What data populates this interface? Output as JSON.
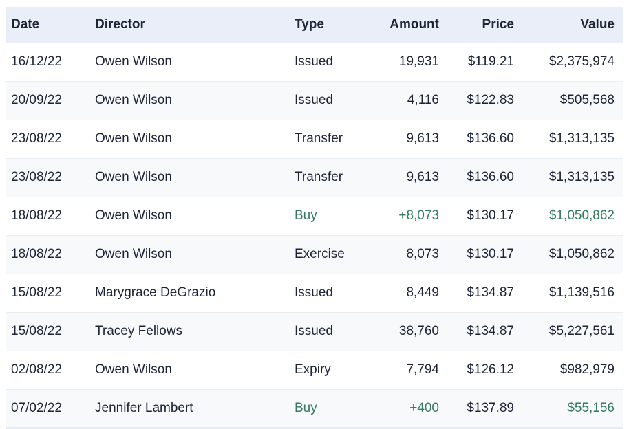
{
  "table": {
    "columns": [
      {
        "label": "Date"
      },
      {
        "label": "Director"
      },
      {
        "label": "Type"
      },
      {
        "label": "Amount"
      },
      {
        "label": "Price"
      },
      {
        "label": "Value"
      }
    ],
    "rows": [
      {
        "date": "16/12/22",
        "director": "Owen Wilson",
        "type": "Issued",
        "amount": "19,931",
        "price": "$119.21",
        "value": "$2,375,974",
        "highlight_green": false
      },
      {
        "date": "20/09/22",
        "director": "Owen Wilson",
        "type": "Issued",
        "amount": "4,116",
        "price": "$122.83",
        "value": "$505,568",
        "highlight_green": false
      },
      {
        "date": "23/08/22",
        "director": "Owen Wilson",
        "type": "Transfer",
        "amount": "9,613",
        "price": "$136.60",
        "value": "$1,313,135",
        "highlight_green": false
      },
      {
        "date": "23/08/22",
        "director": "Owen Wilson",
        "type": "Transfer",
        "amount": "9,613",
        "price": "$136.60",
        "value": "$1,313,135",
        "highlight_green": false
      },
      {
        "date": "18/08/22",
        "director": "Owen Wilson",
        "type": "Buy",
        "amount": "+8,073",
        "price": "$130.17",
        "value": "$1,050,862",
        "highlight_green": true
      },
      {
        "date": "18/08/22",
        "director": "Owen Wilson",
        "type": "Exercise",
        "amount": "8,073",
        "price": "$130.17",
        "value": "$1,050,862",
        "highlight_green": false
      },
      {
        "date": "15/08/22",
        "director": "Marygrace DeGrazio",
        "type": "Issued",
        "amount": "8,449",
        "price": "$134.87",
        "value": "$1,139,516",
        "highlight_green": false
      },
      {
        "date": "15/08/22",
        "director": "Tracey Fellows",
        "type": "Issued",
        "amount": "38,760",
        "price": "$134.87",
        "value": "$5,227,561",
        "highlight_green": false
      },
      {
        "date": "02/08/22",
        "director": "Owen Wilson",
        "type": "Expiry",
        "amount": "7,794",
        "price": "$126.12",
        "value": "$982,979",
        "highlight_green": false
      },
      {
        "date": "07/02/22",
        "director": "Jennifer Lambert",
        "type": "Buy",
        "amount": "+400",
        "price": "$137.89",
        "value": "$55,156",
        "highlight_green": true
      }
    ]
  },
  "colors": {
    "header_bg": "#e9eef8",
    "stripe_bg": "#f8f9fb",
    "text": "#1c2436",
    "accent_green": "#35795f",
    "row_separator": "#e9edf4"
  }
}
